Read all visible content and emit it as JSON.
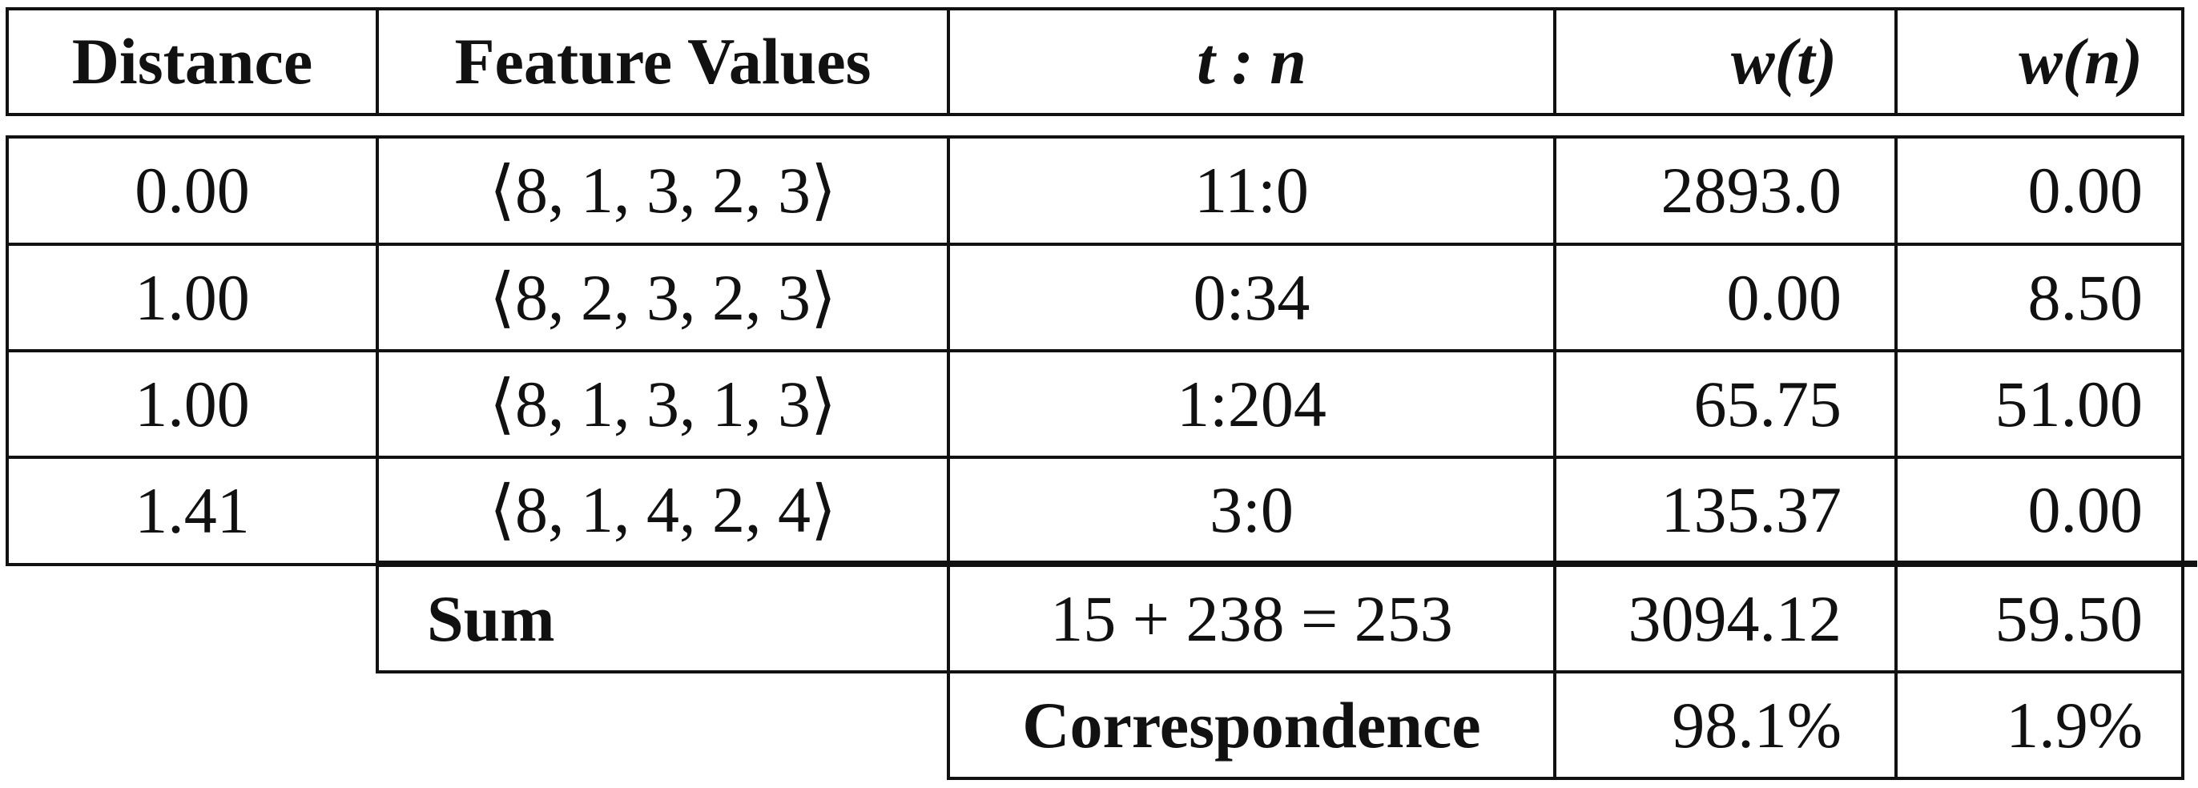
{
  "table": {
    "headers": {
      "distance": "Distance",
      "feature_values": "Feature Values",
      "tn": "t : n",
      "wt": "w(t)",
      "wn": "w(n)"
    },
    "rows": [
      {
        "distance": "0.00",
        "features": "⟨8, 1, 3, 2, 3⟩",
        "tn": "11:0",
        "wt": "2893.0",
        "wn": "0.00"
      },
      {
        "distance": "1.00",
        "features": "⟨8, 2, 3, 2, 3⟩",
        "tn": "0:34",
        "wt": "0.00",
        "wn": "8.50"
      },
      {
        "distance": "1.00",
        "features": "⟨8, 1, 3, 1, 3⟩",
        "tn": "1:204",
        "wt": "65.75",
        "wn": "51.00"
      },
      {
        "distance": "1.41",
        "features": "⟨8, 1, 4, 2, 4⟩",
        "tn": "3:0",
        "wt": "135.37",
        "wn": "0.00"
      }
    ],
    "sum": {
      "label": "Sum",
      "tn": "15 + 238 = 253",
      "wt": "3094.12",
      "wn": "59.50"
    },
    "correspondence": {
      "label": "Correspondence",
      "wt": "98.1%",
      "wn": "1.9%"
    }
  }
}
